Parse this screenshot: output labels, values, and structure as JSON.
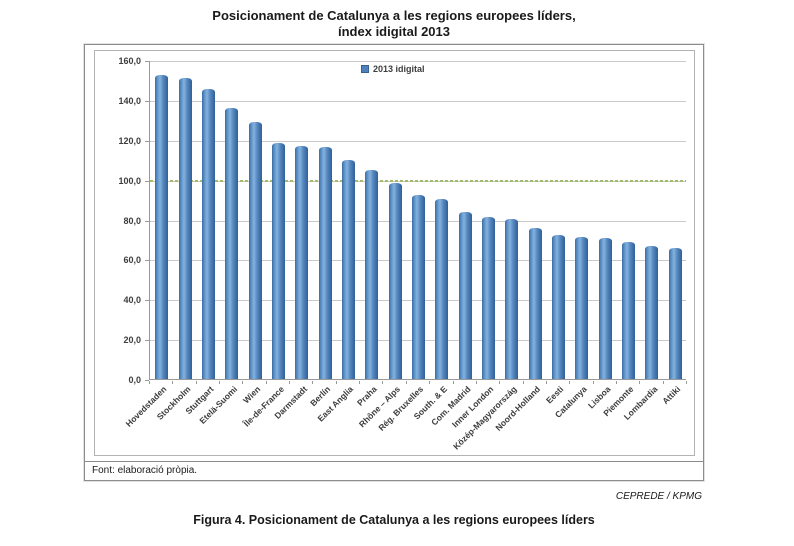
{
  "page": {
    "title_line1": "Posicionament de Catalunya a les regions europees líders,",
    "title_line2": "índex idigital 2013",
    "source_note": "Font: elaboració pròpia.",
    "credit": "CEPREDE / KPMG",
    "caption": "Figura 4. Posicionament de Catalunya a les regions europees líders"
  },
  "chart_data": {
    "type": "bar",
    "title": "Posicionament de Catalunya a les regions europees líders, índex idigital 2013",
    "legend_entries": [
      {
        "label": "2013 idigital",
        "color": "#4f81bd"
      }
    ],
    "legend_position": "top-center",
    "grid": true,
    "categories": [
      "Hovedstaden",
      "Stockholm",
      "Stuttgart",
      "Etelä-Suomi",
      "Wien",
      "Île-de-France",
      "Darmstadt",
      "Berlín",
      "East Anglia",
      "Praha",
      "Rhône – Alps",
      "Rég. Bruxelles",
      "South. & E",
      "Com. Madrid",
      "Inner London",
      "Közép-Magyarország",
      "Noord-Holland",
      "Eesti",
      "Catalunya",
      "Lisboa",
      "Piemonte",
      "Lombardia",
      "Attiki"
    ],
    "series": [
      {
        "name": "2013 idigital",
        "values": [
          152.5,
          151.0,
          145.5,
          136.0,
          129.0,
          118.5,
          117.0,
          116.5,
          110.0,
          105.0,
          98.5,
          92.5,
          90.5,
          84.0,
          81.5,
          80.5,
          75.5,
          72.0,
          71.0,
          70.5,
          68.5,
          66.5,
          65.5
        ]
      }
    ],
    "xlabel": "",
    "ylabel": "",
    "ylim": [
      0,
      160
    ],
    "ytick_step": 20,
    "ytick_labels": [
      "0,0",
      "20,0",
      "40,0",
      "60,0",
      "80,0",
      "100,0",
      "120,0",
      "140,0",
      "160,0"
    ],
    "reference_line": {
      "value": 100,
      "style": "dashed",
      "color": "#a3bc69"
    },
    "bar_color": "#4f81bd"
  }
}
